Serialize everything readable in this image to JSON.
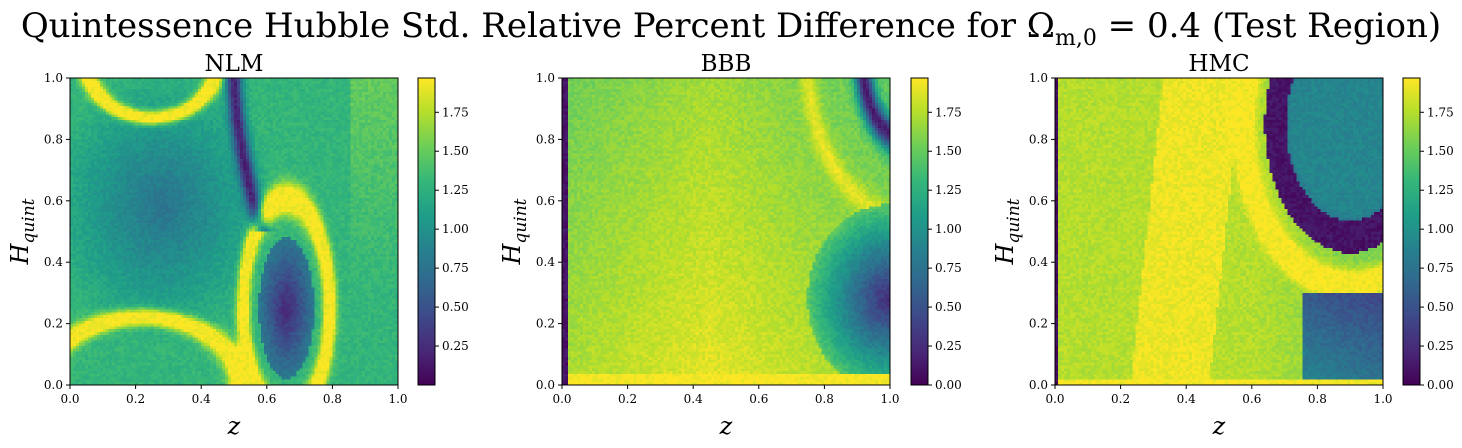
{
  "figure": {
    "suptitle": "Quintessence Hubble Std. Relative Percent Difference for Ω",
    "suptitle_sub": "m,0",
    "suptitle_tail": " = 0.4 (Test Region)"
  },
  "colormap": "viridis",
  "chart_data": [
    {
      "type": "heatmap",
      "title": "NLM",
      "xlabel": "z",
      "ylabel": "H",
      "ylabel_sub": "quint",
      "xlim": [
        0.0,
        1.0
      ],
      "ylim": [
        0.0,
        1.0
      ],
      "x_ticks": [
        "0.0",
        "0.2",
        "0.4",
        "0.6",
        "0.8",
        "1.0"
      ],
      "y_ticks": [
        "0.0",
        "0.2",
        "0.4",
        "0.6",
        "0.8",
        "1.0"
      ],
      "colorbar_range": [
        0.0,
        1.97
      ],
      "colorbar_ticks": [
        "0.25",
        "0.50",
        "0.75",
        "1.00",
        "1.25",
        "1.50",
        "1.75"
      ],
      "grid": false
    },
    {
      "type": "heatmap",
      "title": "BBB",
      "xlabel": "z",
      "ylabel": "H",
      "ylabel_sub": "quint",
      "xlim": [
        0.0,
        1.0
      ],
      "ylim": [
        0.0,
        1.0
      ],
      "x_ticks": [
        "0.0",
        "0.2",
        "0.4",
        "0.6",
        "0.8",
        "1.0"
      ],
      "y_ticks": [
        "0.0",
        "0.2",
        "0.4",
        "0.6",
        "0.8",
        "1.0"
      ],
      "colorbar_range": [
        0.0,
        1.97
      ],
      "colorbar_ticks": [
        "0.00",
        "0.25",
        "0.50",
        "0.75",
        "1.00",
        "1.25",
        "1.50",
        "1.75"
      ],
      "grid": false
    },
    {
      "type": "heatmap",
      "title": "HMC",
      "xlabel": "z",
      "ylabel": "H",
      "ylabel_sub": "quint",
      "xlim": [
        0.0,
        1.0
      ],
      "ylim": [
        0.0,
        1.0
      ],
      "x_ticks": [
        "0.0",
        "0.2",
        "0.4",
        "0.6",
        "0.8",
        "1.0"
      ],
      "y_ticks": [
        "0.0",
        "0.2",
        "0.4",
        "0.6",
        "0.8",
        "1.0"
      ],
      "colorbar_range": [
        0.0,
        1.97
      ],
      "colorbar_ticks": [
        "0.00",
        "0.25",
        "0.50",
        "0.75",
        "1.00",
        "1.25",
        "1.50",
        "1.75"
      ],
      "grid": false
    }
  ]
}
